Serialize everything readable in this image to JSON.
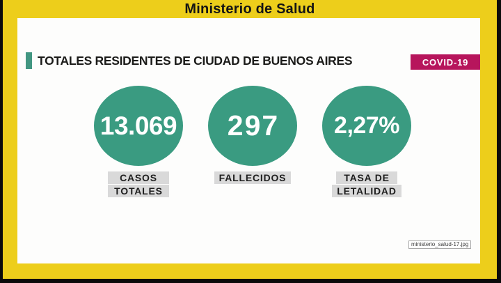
{
  "header": {
    "title": "Ministerio de Salud"
  },
  "slide": {
    "title": "TOTALES RESIDENTES DE CIUDAD DE BUENOS AIRES",
    "badge": "COVID-19",
    "stats": [
      {
        "value": "13.069",
        "label_lines": [
          "CASOS",
          "TOTALES"
        ]
      },
      {
        "value": "297",
        "label_lines": [
          "FALLECIDOS"
        ]
      },
      {
        "value": "2,27%",
        "label_lines": [
          "TASA DE",
          "LETALIDAD"
        ]
      }
    ],
    "watermark": "ministerio_salud-17.jpg"
  },
  "chart_data": {
    "type": "table",
    "title": "TOTALES RESIDENTES DE CIUDAD DE BUENOS AIRES",
    "subtitle": "Ministerio de Salud — COVID-19",
    "categories": [
      "CASOS TOTALES",
      "FALLECIDOS",
      "TASA DE LETALIDAD"
    ],
    "values": [
      13069,
      297,
      2.27
    ],
    "value_displays": [
      "13.069",
      "297",
      "2,27%"
    ],
    "units": [
      "cases",
      "deaths",
      "percent"
    ]
  },
  "colors": {
    "frame_yellow": "#edce1b",
    "letterbox_black": "#0b0b0b",
    "card_white": "#fdfdfc",
    "circle_green": "#3a9b81",
    "accent_green": "#429681",
    "badge_magenta": "#b7155c",
    "label_gray": "#d9d9d9"
  }
}
